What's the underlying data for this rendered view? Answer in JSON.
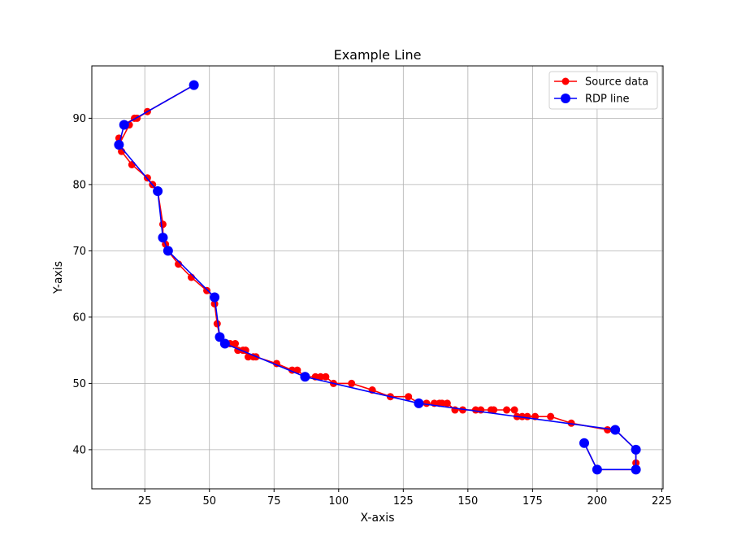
{
  "chart_data": {
    "type": "line",
    "title": "Example Line",
    "xlabel": "X-axis",
    "ylabel": "Y-axis",
    "xlim": [
      4.5,
      225.5
    ],
    "ylim": [
      34.1,
      97.9
    ],
    "xticks": [
      25,
      50,
      75,
      100,
      125,
      150,
      175,
      200,
      225
    ],
    "yticks": [
      40,
      50,
      60,
      70,
      80,
      90
    ],
    "grid": true,
    "legend_position": "top-right",
    "series": [
      {
        "name": "Source data",
        "color": "#ff0000",
        "marker": "circle",
        "points": [
          [
            44,
            95
          ],
          [
            26,
            91
          ],
          [
            22,
            90
          ],
          [
            21,
            90
          ],
          [
            17,
            89
          ],
          [
            19,
            89
          ],
          [
            15,
            86
          ],
          [
            15,
            87
          ],
          [
            16,
            85
          ],
          [
            20,
            83
          ],
          [
            26,
            81
          ],
          [
            28,
            80
          ],
          [
            30,
            79
          ],
          [
            32,
            74
          ],
          [
            32,
            72
          ],
          [
            33,
            71
          ],
          [
            34,
            70
          ],
          [
            38,
            68
          ],
          [
            43,
            66
          ],
          [
            49,
            64
          ],
          [
            52,
            63
          ],
          [
            52,
            62
          ],
          [
            53,
            59
          ],
          [
            54,
            57
          ],
          [
            56,
            56
          ],
          [
            58,
            56
          ],
          [
            60,
            56
          ],
          [
            61,
            55
          ],
          [
            63,
            55
          ],
          [
            64,
            55
          ],
          [
            65,
            54
          ],
          [
            67,
            54
          ],
          [
            68,
            54
          ],
          [
            76,
            53
          ],
          [
            82,
            52
          ],
          [
            84,
            52
          ],
          [
            87,
            51
          ],
          [
            91,
            51
          ],
          [
            93,
            51
          ],
          [
            95,
            51
          ],
          [
            98,
            50
          ],
          [
            105,
            50
          ],
          [
            113,
            49
          ],
          [
            120,
            48
          ],
          [
            127,
            48
          ],
          [
            131,
            47
          ],
          [
            134,
            47
          ],
          [
            137,
            47
          ],
          [
            139,
            47
          ],
          [
            140,
            47
          ],
          [
            142,
            47
          ],
          [
            145,
            46
          ],
          [
            148,
            46
          ],
          [
            153,
            46
          ],
          [
            155,
            46
          ],
          [
            159,
            46
          ],
          [
            160,
            46
          ],
          [
            165,
            46
          ],
          [
            168,
            46
          ],
          [
            169,
            45
          ],
          [
            171,
            45
          ],
          [
            173,
            45
          ],
          [
            176,
            45
          ],
          [
            182,
            45
          ],
          [
            190,
            44
          ],
          [
            204,
            43
          ],
          [
            207,
            43
          ],
          [
            215,
            40
          ],
          [
            215,
            38
          ],
          [
            215,
            37
          ],
          [
            200,
            37
          ],
          [
            195,
            41
          ]
        ]
      },
      {
        "name": "RDP line",
        "color": "#0000ff",
        "marker": "circle",
        "points": [
          [
            44,
            95
          ],
          [
            17,
            89
          ],
          [
            15,
            86
          ],
          [
            30,
            79
          ],
          [
            32,
            72
          ],
          [
            34,
            70
          ],
          [
            52,
            63
          ],
          [
            54,
            57
          ],
          [
            56,
            56
          ],
          [
            87,
            51
          ],
          [
            131,
            47
          ],
          [
            207,
            43
          ],
          [
            215,
            40
          ],
          [
            215,
            37
          ],
          [
            200,
            37
          ],
          [
            195,
            41
          ]
        ]
      }
    ]
  }
}
